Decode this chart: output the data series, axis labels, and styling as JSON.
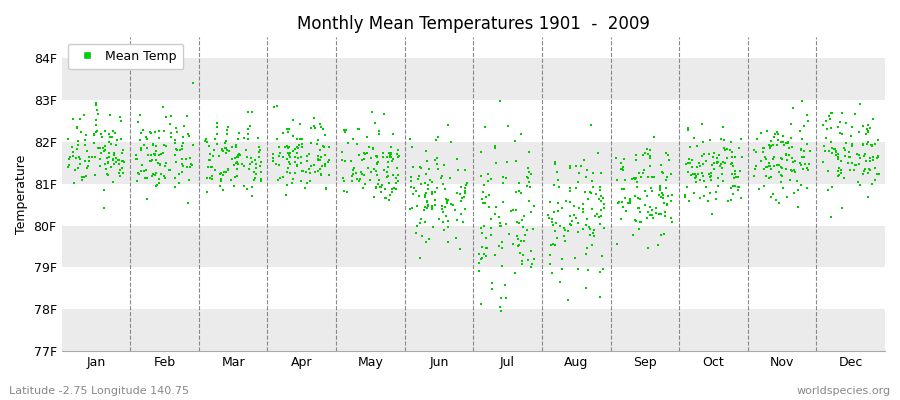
{
  "title": "Monthly Mean Temperatures 1901  -  2009",
  "ylabel": "Temperature",
  "xlabel_labels": [
    "Jan",
    "Feb",
    "Mar",
    "Apr",
    "May",
    "Jun",
    "Jul",
    "Aug",
    "Sep",
    "Oct",
    "Nov",
    "Dec"
  ],
  "latitude": "Latitude -2.75 Longitude 140.75",
  "watermark": "worldspecies.org",
  "ylim": [
    77,
    84.5
  ],
  "yticks": [
    77,
    78,
    79,
    80,
    81,
    82,
    83,
    84
  ],
  "ytick_labels": [
    "77F",
    "78F",
    "79F",
    "80F",
    "81F",
    "82F",
    "83F",
    "84F"
  ],
  "marker_color": "#00cc00",
  "marker": "s",
  "marker_size": 3,
  "legend_label": "Mean Temp",
  "bg_color": "#ffffff",
  "band_colors_h": [
    "#ebebeb",
    "#ffffff"
  ],
  "years": 109,
  "monthly_means": [
    81.75,
    81.65,
    81.55,
    81.65,
    81.5,
    80.8,
    80.1,
    80.2,
    80.8,
    81.3,
    81.6,
    81.8
  ],
  "monthly_stds": [
    0.45,
    0.45,
    0.45,
    0.45,
    0.5,
    0.65,
    0.85,
    0.75,
    0.55,
    0.5,
    0.55,
    0.5
  ]
}
